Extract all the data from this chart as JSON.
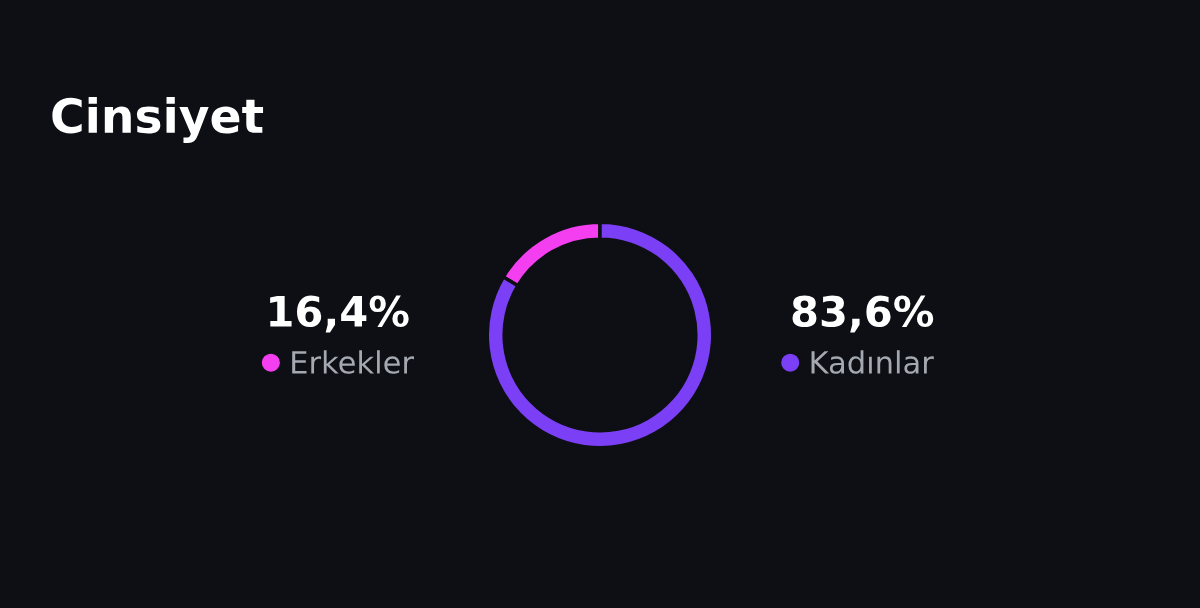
{
  "chart_data": {
    "type": "donut",
    "title": "Cinsiyet",
    "categories": [
      "Erkekler",
      "Kadınlar"
    ],
    "values": [
      16.4,
      83.6
    ],
    "colors": [
      "#f43ff0",
      "#7b3ff5"
    ],
    "value_labels": [
      "16,4%",
      "83,6%"
    ],
    "legend": "center"
  }
}
